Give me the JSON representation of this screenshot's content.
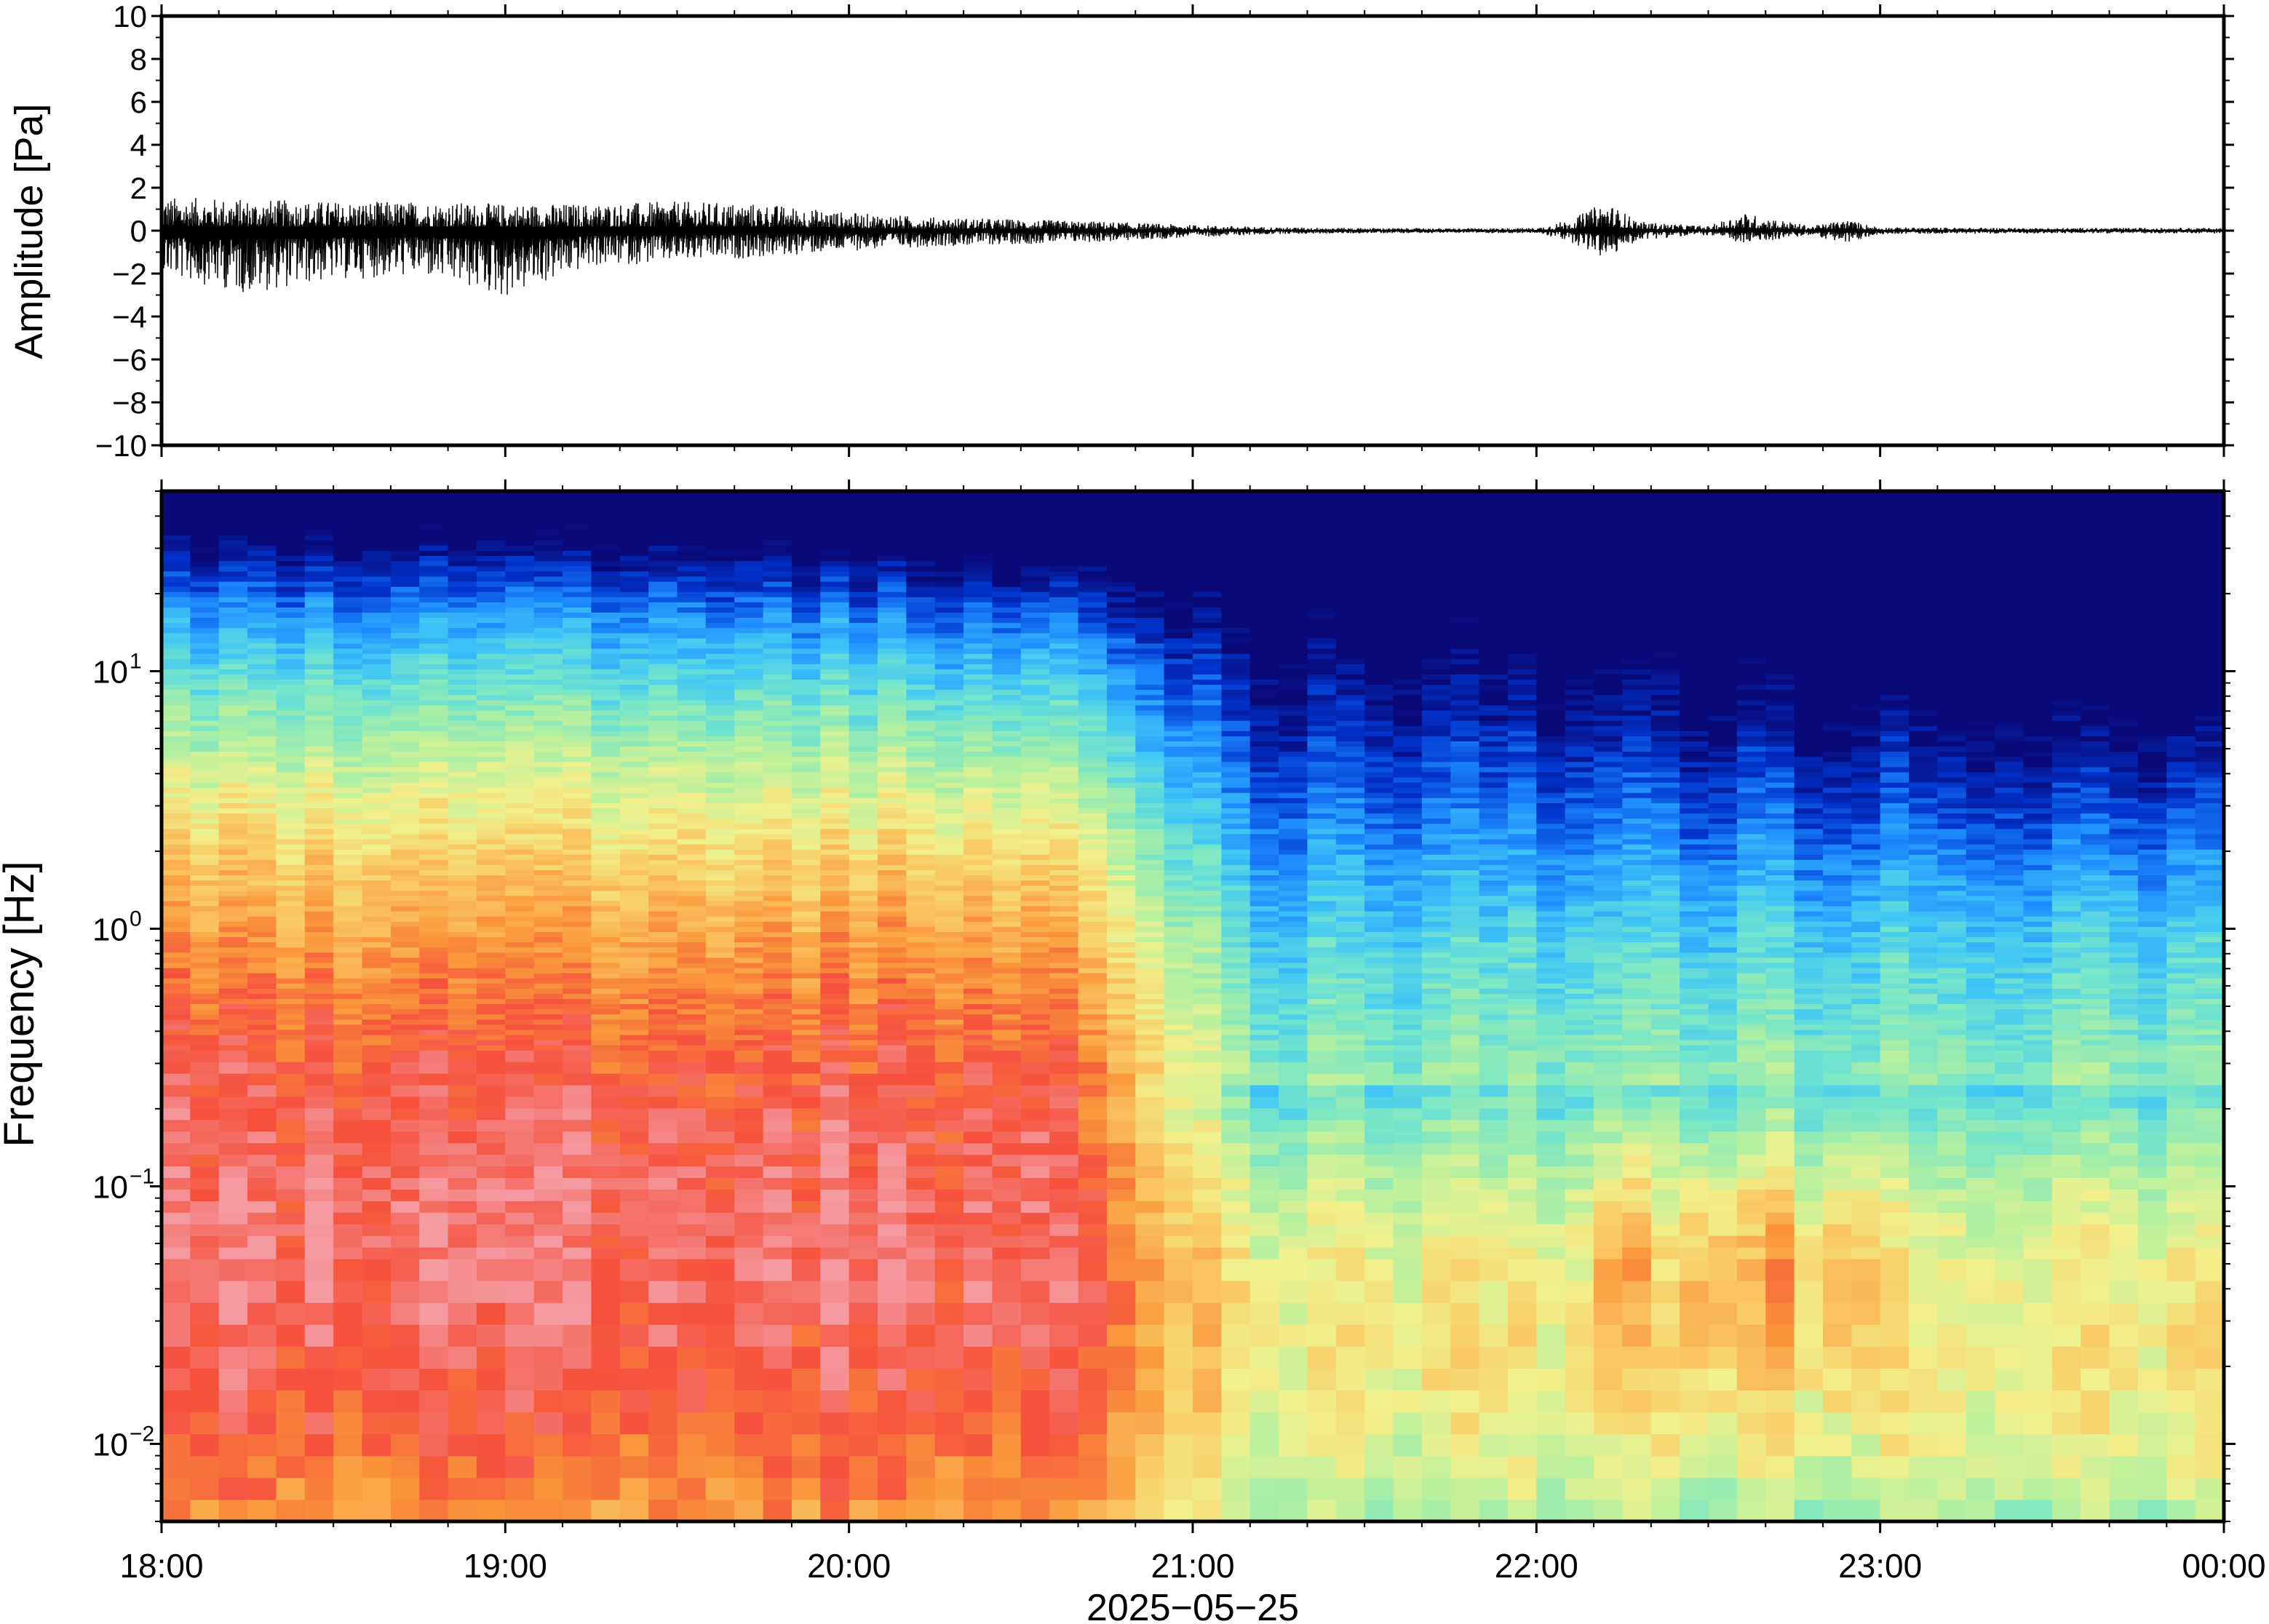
{
  "chart_data": [
    {
      "type": "line",
      "ylabel": "Amplitude [Pa]",
      "ylim": [
        -10,
        10
      ],
      "yticks": [
        10,
        8,
        6,
        4,
        2,
        0,
        -2,
        -4,
        -6,
        -8,
        -10
      ],
      "ytick_labels": [
        "10",
        "8",
        "6",
        "4",
        "2",
        "0",
        "−2",
        "−4",
        "−6",
        "−8",
        "−10"
      ],
      "xlim_hours": [
        18,
        24
      ],
      "grid": false,
      "series": [
        {
          "amplitude_envelope": {
            "time_hours": [
              18.0,
              18.25,
              18.5,
              18.75,
              19.0,
              19.25,
              19.5,
              19.75,
              20.0,
              20.25,
              20.5,
              20.75,
              21.0,
              21.25,
              21.5,
              21.75,
              22.0,
              22.1,
              22.2,
              22.3,
              22.5,
              22.6,
              22.8,
              22.9,
              23.0,
              23.5,
              24.0
            ],
            "max_pa": [
              1.5,
              1.4,
              1.3,
              1.3,
              1.2,
              1.2,
              1.3,
              1.2,
              0.8,
              0.6,
              0.5,
              0.4,
              0.25,
              0.15,
              0.12,
              0.1,
              0.12,
              0.5,
              1.3,
              0.4,
              0.2,
              0.8,
              0.2,
              0.5,
              0.15,
              0.12,
              0.12
            ],
            "min_pa": [
              -2.0,
              -2.8,
              -2.2,
              -2.0,
              -3.0,
              -1.6,
              -1.4,
              -1.2,
              -0.9,
              -0.7,
              -0.6,
              -0.5,
              -0.3,
              -0.15,
              -0.12,
              -0.1,
              -0.12,
              -0.5,
              -1.3,
              -0.4,
              -0.2,
              -0.6,
              -0.2,
              -0.6,
              -0.15,
              -0.12,
              -0.12
            ]
          }
        }
      ]
    },
    {
      "type": "heatmap",
      "xlabel": "2025−05−25",
      "ylabel": "Frequency [Hz]",
      "yscale": "log",
      "ylim_hz": [
        0.005,
        50
      ],
      "yticks_hz": [
        0.01,
        0.1,
        1,
        10
      ],
      "ytick_labels": [
        {
          "base": "10",
          "exp": "−2"
        },
        {
          "base": "10",
          "exp": "−1"
        },
        {
          "base": "10",
          "exp": "0"
        },
        {
          "base": "10",
          "exp": "1"
        }
      ],
      "xlim_hours": [
        18,
        24
      ],
      "xticks_hours": [
        18,
        19,
        20,
        21,
        22,
        23,
        24
      ],
      "xtick_labels": [
        "18:00",
        "19:00",
        "20:00",
        "21:00",
        "22:00",
        "23:00",
        "00:00"
      ],
      "colormap": "rainbow (dark blue = low power, red/pink = high power)",
      "colormap_stops": [
        "#0a0a78",
        "#0033cc",
        "#1e8cff",
        "#41c8f5",
        "#78e6c8",
        "#b4f0a0",
        "#f0f08c",
        "#fac864",
        "#fa963c",
        "#f5503c",
        "#f59aa0"
      ],
      "time_columns": 72,
      "power_profiles": {
        "early": {
          "time_hours": [
            18.0,
            21.0
          ],
          "description": "broadband noise; red/pink maximum at 0.03–0.3 Hz"
        },
        "quiet": {
          "time_hours": [
            21.2,
            24.0
          ],
          "description": "dark blue above ~1–5 Hz; moderate power 0.02–0.1 Hz"
        },
        "burst_hours": [
          22.25,
          22.5,
          22.7,
          22.9
        ]
      }
    }
  ]
}
